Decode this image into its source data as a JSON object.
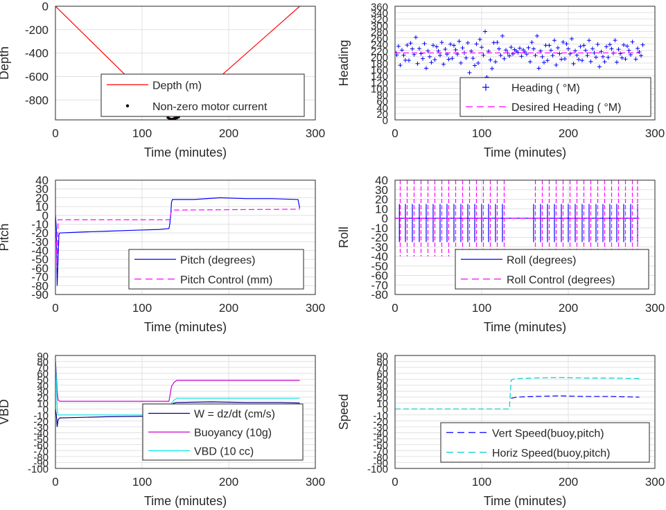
{
  "chart_data": [
    {
      "id": "depth",
      "type": "line",
      "xlabel": "Time (minutes)",
      "ylabel": "Depth",
      "xlim": [
        0,
        300
      ],
      "ylim": [
        -970,
        0
      ],
      "xticks": [
        0,
        100,
        200,
        300
      ],
      "yticks": [
        0,
        -200,
        -400,
        -600,
        -800
      ],
      "grid": true,
      "legend_position": "bottom-center",
      "series": [
        {
          "name": "Depth (m)",
          "style": "line",
          "color": "#ff0000",
          "x": [
            0,
            132,
            134,
            135,
            282
          ],
          "y": [
            0,
            -960,
            -965,
            -960,
            0
          ]
        },
        {
          "name": "Non-zero motor current",
          "style": "dots",
          "color": "#000000",
          "x": [
            130,
            132,
            134,
            136,
            138,
            140,
            142,
            146,
            150,
            154
          ],
          "y": [
            -950,
            -962,
            -966,
            -964,
            -958,
            -952,
            -945,
            -930,
            -915,
            -900
          ]
        }
      ]
    },
    {
      "id": "heading",
      "type": "scatter",
      "xlabel": "Time (minutes)",
      "ylabel": "Heading",
      "xlim": [
        0,
        300
      ],
      "ylim": [
        0,
        360
      ],
      "xticks": [
        0,
        100,
        200,
        300
      ],
      "yticks": [
        0,
        20,
        40,
        60,
        80,
        100,
        120,
        140,
        160,
        180,
        200,
        220,
        240,
        260,
        280,
        300,
        320,
        340,
        360
      ],
      "grid": true,
      "legend_position": "bottom-right",
      "series": [
        {
          "name": "Heading ( °M)",
          "style": "plus",
          "color": "#0000ff",
          "x": [
            0,
            10,
            20,
            30,
            40,
            50,
            60,
            70,
            80,
            90,
            100,
            110,
            120,
            130,
            140,
            150,
            160,
            170,
            180,
            190,
            200,
            210,
            220,
            230,
            240,
            250,
            260,
            270,
            282
          ],
          "y": [
            215,
            205,
            225,
            210,
            200,
            218,
            208,
            222,
            212,
            195,
            230,
            190,
            225,
            212,
            218,
            215,
            225,
            200,
            220,
            210,
            225,
            205,
            220,
            212,
            200,
            225,
            210,
            220,
            215
          ],
          "spread": [
            20,
            35,
            40,
            35,
            40,
            30,
            35,
            30,
            35,
            50,
            55,
            60,
            45,
            20,
            10,
            15,
            45,
            40,
            35,
            40,
            35,
            30,
            35,
            30,
            35,
            30,
            30,
            30,
            25
          ]
        },
        {
          "name": "Desired Heading ( °M)",
          "style": "dashed",
          "color": "#ff00ff",
          "x": [
            0,
            135,
            282
          ],
          "y": [
            212,
            212,
            212
          ]
        }
      ]
    },
    {
      "id": "pitch",
      "type": "line",
      "xlabel": "Time (minutes)",
      "ylabel": "Pitch",
      "xlim": [
        0,
        300
      ],
      "ylim": [
        -90,
        40
      ],
      "xticks": [
        0,
        100,
        200,
        300
      ],
      "yticks": [
        40,
        30,
        20,
        10,
        0,
        -10,
        -20,
        -30,
        -40,
        -50,
        -60,
        -70,
        -80,
        -90
      ],
      "grid": true,
      "legend_position": "bottom-right",
      "series": [
        {
          "name": "Pitch (degrees)",
          "style": "line",
          "color": "#0000ff",
          "x": [
            0,
            1,
            2,
            3,
            4,
            5,
            30,
            60,
            90,
            120,
            131,
            132,
            133,
            134,
            135,
            160,
            190,
            220,
            250,
            280,
            282
          ],
          "y": [
            0,
            -15,
            -80,
            -50,
            -22,
            -20,
            -19,
            -18,
            -17,
            -16,
            -15,
            -10,
            0,
            15,
            18,
            18,
            20,
            19,
            19,
            18,
            8
          ]
        },
        {
          "name": "Pitch Control (mm)",
          "style": "dashed",
          "color": "#ff00ff",
          "x": [
            0,
            1,
            2,
            3,
            5,
            131,
            132,
            134,
            282
          ],
          "y": [
            -10,
            -30,
            -60,
            -5,
            -5,
            -5,
            -5,
            6,
            7
          ]
        }
      ]
    },
    {
      "id": "roll",
      "type": "line",
      "xlabel": "Time (minutes)",
      "ylabel": "Roll",
      "xlim": [
        0,
        300
      ],
      "ylim": [
        -80,
        40
      ],
      "xticks": [
        0,
        100,
        200,
        300
      ],
      "yticks": [
        40,
        30,
        20,
        10,
        0,
        -10,
        -20,
        -30,
        -40,
        -50,
        -60,
        -70,
        -80
      ],
      "grid": true,
      "legend_position": "bottom-right",
      "series": [
        {
          "name": "Roll (degrees)",
          "style": "line",
          "color": "#0000ff",
          "x": [
            0,
            282
          ],
          "y": [
            0,
            0
          ],
          "spike_times": [
            5,
            12,
            20,
            28,
            36,
            44,
            52,
            60,
            68,
            76,
            84,
            92,
            100,
            108,
            116,
            124,
            160,
            168,
            176,
            184,
            192,
            200,
            208,
            216,
            224,
            232,
            240,
            248,
            256,
            264,
            272,
            280
          ],
          "spike_high": 15,
          "spike_low": -25
        },
        {
          "name": "Roll Control (degrees)",
          "style": "dashed",
          "color": "#ff00ff",
          "x": [
            0,
            282
          ],
          "y": [
            0,
            0
          ],
          "spike_times": [
            6,
            14,
            22,
            30,
            38,
            46,
            54,
            62,
            70,
            78,
            86,
            94,
            102,
            110,
            118,
            126,
            162,
            170,
            178,
            186,
            194,
            202,
            210,
            218,
            226,
            234,
            242,
            250,
            258,
            266,
            274,
            280
          ],
          "spike_high": 40,
          "spike_low": -40
        }
      ]
    },
    {
      "id": "vbd",
      "type": "line",
      "xlabel": "Time (minutes)",
      "ylabel": "VBD",
      "xlim": [
        0,
        300
      ],
      "ylim": [
        -100,
        90
      ],
      "xticks": [
        0,
        100,
        200,
        300
      ],
      "yticks": [
        90,
        80,
        70,
        60,
        50,
        40,
        30,
        20,
        10,
        0,
        -10,
        -20,
        -30,
        -40,
        -50,
        -60,
        -70,
        -80,
        -90,
        -100
      ],
      "grid": true,
      "legend_position": "bottom-right",
      "series": [
        {
          "name": "W = dz/dt (cm/s)",
          "style": "line",
          "color": "#00008b",
          "x": [
            0,
            1,
            2,
            3,
            5,
            60,
            120,
            131,
            133,
            135,
            137,
            140,
            180,
            220,
            260,
            282
          ],
          "y": [
            0,
            -10,
            -30,
            -18,
            -15,
            -13,
            -12,
            -12,
            -5,
            8,
            10,
            11,
            12,
            11,
            11,
            10
          ]
        },
        {
          "name": "Buoyancy (10g)",
          "style": "line",
          "color": "#cc00cc",
          "x": [
            0,
            1,
            2,
            3,
            5,
            60,
            120,
            131,
            134,
            137,
            140,
            180,
            230,
            282
          ],
          "y": [
            80,
            60,
            30,
            15,
            13,
            13,
            13,
            13,
            38,
            45,
            48,
            48,
            48,
            48
          ]
        },
        {
          "name": "VBD (10 cc)",
          "style": "line",
          "color": "#00e5e5",
          "x": [
            0,
            1,
            2,
            3,
            5,
            60,
            120,
            131,
            134,
            137,
            140,
            180,
            230,
            282
          ],
          "y": [
            80,
            50,
            0,
            -10,
            -10,
            -10,
            -10,
            -10,
            10,
            15,
            18,
            18,
            18,
            18
          ]
        }
      ]
    },
    {
      "id": "speed",
      "type": "line",
      "xlabel": "Time (minutes)",
      "ylabel": "Speed",
      "xlim": [
        0,
        300
      ],
      "ylim": [
        -100,
        90
      ],
      "xticks": [
        0,
        100,
        200,
        300
      ],
      "yticks": [
        90,
        80,
        70,
        60,
        50,
        40,
        30,
        20,
        10,
        0,
        -10,
        -20,
        -30,
        -40,
        -50,
        -60,
        -70,
        -80,
        -90,
        -100
      ],
      "grid": true,
      "legend_position": "bottom-right",
      "series": [
        {
          "name": "Vert Speed(buoy,pitch)",
          "style": "dashed",
          "color": "#0000ff",
          "x": [
            134,
            140,
            160,
            190,
            220,
            250,
            282
          ],
          "y": [
            18,
            20,
            21,
            22,
            21,
            21,
            20
          ]
        },
        {
          "name": "Horiz Speed(buoy,pitch)",
          "style": "dashed",
          "color": "#00cccc",
          "x": [
            0,
            132,
            134,
            136,
            140,
            160,
            190,
            220,
            250,
            282
          ],
          "y": [
            0,
            0,
            48,
            50,
            51,
            52,
            53,
            52,
            52,
            51
          ]
        }
      ]
    }
  ]
}
